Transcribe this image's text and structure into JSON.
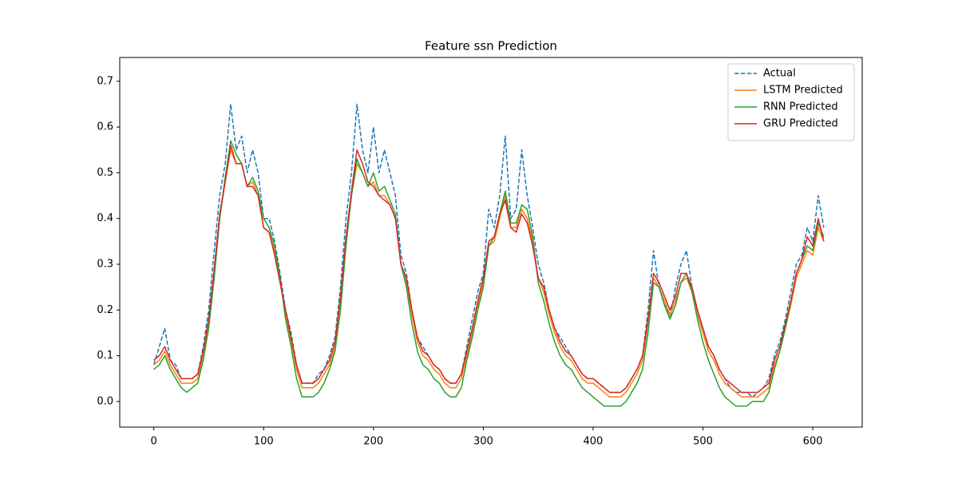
{
  "chart_data": {
    "type": "line",
    "title": "Feature ssn Prediction",
    "x": [
      0,
      5,
      10,
      15,
      20,
      25,
      30,
      35,
      40,
      45,
      50,
      55,
      60,
      65,
      70,
      75,
      80,
      85,
      90,
      95,
      100,
      105,
      110,
      115,
      120,
      125,
      130,
      135,
      140,
      145,
      150,
      155,
      160,
      165,
      170,
      175,
      180,
      185,
      190,
      195,
      200,
      205,
      210,
      215,
      220,
      225,
      230,
      235,
      240,
      245,
      250,
      255,
      260,
      265,
      270,
      275,
      280,
      285,
      290,
      295,
      300,
      305,
      310,
      315,
      320,
      325,
      330,
      335,
      340,
      345,
      350,
      355,
      360,
      365,
      370,
      375,
      380,
      385,
      390,
      395,
      400,
      405,
      410,
      415,
      420,
      425,
      430,
      435,
      440,
      445,
      450,
      455,
      460,
      465,
      470,
      475,
      480,
      485,
      490,
      495,
      500,
      505,
      510,
      515,
      520,
      525,
      530,
      535,
      540,
      545,
      550,
      555,
      560,
      565,
      570,
      575,
      580,
      585,
      590,
      595,
      600,
      605,
      610
    ],
    "series": [
      {
        "name": "Actual",
        "color": "#1f77b4",
        "linestyle": "dashed",
        "values": [
          0.08,
          0.12,
          0.16,
          0.09,
          0.08,
          0.05,
          0.05,
          0.05,
          0.06,
          0.12,
          0.2,
          0.33,
          0.45,
          0.52,
          0.65,
          0.55,
          0.58,
          0.5,
          0.55,
          0.5,
          0.4,
          0.4,
          0.35,
          0.28,
          0.2,
          0.15,
          0.08,
          0.04,
          0.04,
          0.04,
          0.06,
          0.07,
          0.1,
          0.14,
          0.25,
          0.4,
          0.5,
          0.65,
          0.55,
          0.5,
          0.6,
          0.5,
          0.55,
          0.5,
          0.45,
          0.32,
          0.28,
          0.2,
          0.14,
          0.12,
          0.1,
          0.08,
          0.07,
          0.05,
          0.04,
          0.04,
          0.06,
          0.12,
          0.18,
          0.24,
          0.28,
          0.42,
          0.38,
          0.45,
          0.58,
          0.4,
          0.42,
          0.55,
          0.45,
          0.38,
          0.3,
          0.26,
          0.2,
          0.16,
          0.14,
          0.12,
          0.1,
          0.08,
          0.06,
          0.05,
          0.05,
          0.04,
          0.03,
          0.02,
          0.02,
          0.02,
          0.03,
          0.05,
          0.07,
          0.1,
          0.2,
          0.33,
          0.25,
          0.22,
          0.18,
          0.25,
          0.3,
          0.33,
          0.25,
          0.2,
          0.16,
          0.12,
          0.1,
          0.07,
          0.05,
          0.03,
          0.02,
          0.02,
          0.02,
          0.01,
          0.02,
          0.03,
          0.05,
          0.1,
          0.13,
          0.18,
          0.24,
          0.3,
          0.32,
          0.38,
          0.35,
          0.45,
          0.38
        ]
      },
      {
        "name": "LSTM Predicted",
        "color": "#ff7f0e",
        "linestyle": "solid",
        "values": [
          0.08,
          0.09,
          0.11,
          0.08,
          0.06,
          0.04,
          0.04,
          0.04,
          0.05,
          0.1,
          0.17,
          0.28,
          0.4,
          0.48,
          0.55,
          0.52,
          0.52,
          0.47,
          0.48,
          0.45,
          0.38,
          0.37,
          0.33,
          0.26,
          0.19,
          0.13,
          0.07,
          0.03,
          0.03,
          0.03,
          0.04,
          0.06,
          0.08,
          0.12,
          0.22,
          0.35,
          0.45,
          0.52,
          0.5,
          0.47,
          0.48,
          0.45,
          0.45,
          0.43,
          0.4,
          0.3,
          0.26,
          0.19,
          0.13,
          0.1,
          0.09,
          0.07,
          0.06,
          0.04,
          0.03,
          0.03,
          0.05,
          0.1,
          0.15,
          0.21,
          0.26,
          0.34,
          0.35,
          0.4,
          0.45,
          0.38,
          0.38,
          0.42,
          0.4,
          0.35,
          0.27,
          0.24,
          0.19,
          0.15,
          0.12,
          0.1,
          0.09,
          0.07,
          0.05,
          0.04,
          0.04,
          0.03,
          0.02,
          0.01,
          0.01,
          0.01,
          0.02,
          0.04,
          0.06,
          0.09,
          0.17,
          0.27,
          0.25,
          0.22,
          0.19,
          0.22,
          0.26,
          0.27,
          0.24,
          0.19,
          0.15,
          0.11,
          0.09,
          0.06,
          0.04,
          0.03,
          0.02,
          0.01,
          0.01,
          0.01,
          0.01,
          0.02,
          0.03,
          0.08,
          0.11,
          0.16,
          0.21,
          0.27,
          0.3,
          0.33,
          0.32,
          0.38,
          0.35
        ]
      },
      {
        "name": "RNN Predicted",
        "color": "#2ca02c",
        "linestyle": "solid",
        "values": [
          0.07,
          0.08,
          0.1,
          0.07,
          0.05,
          0.03,
          0.02,
          0.03,
          0.04,
          0.09,
          0.16,
          0.27,
          0.4,
          0.49,
          0.57,
          0.54,
          0.52,
          0.47,
          0.49,
          0.46,
          0.4,
          0.38,
          0.34,
          0.27,
          0.18,
          0.12,
          0.05,
          0.01,
          0.01,
          0.01,
          0.02,
          0.04,
          0.07,
          0.11,
          0.2,
          0.34,
          0.45,
          0.53,
          0.5,
          0.47,
          0.5,
          0.46,
          0.47,
          0.44,
          0.41,
          0.3,
          0.25,
          0.17,
          0.11,
          0.08,
          0.07,
          0.05,
          0.04,
          0.02,
          0.01,
          0.01,
          0.03,
          0.09,
          0.14,
          0.2,
          0.25,
          0.34,
          0.36,
          0.41,
          0.46,
          0.39,
          0.39,
          0.43,
          0.42,
          0.36,
          0.26,
          0.22,
          0.17,
          0.13,
          0.1,
          0.08,
          0.07,
          0.05,
          0.03,
          0.02,
          0.01,
          0,
          -0.01,
          -0.01,
          -0.01,
          -0.01,
          0,
          0.02,
          0.04,
          0.07,
          0.15,
          0.26,
          0.25,
          0.21,
          0.18,
          0.21,
          0.26,
          0.28,
          0.24,
          0.18,
          0.13,
          0.09,
          0.06,
          0.03,
          0.01,
          0,
          -0.01,
          -0.01,
          -0.01,
          0,
          0,
          0,
          0.02,
          0.07,
          0.11,
          0.16,
          0.22,
          0.28,
          0.31,
          0.34,
          0.33,
          0.39,
          0.36
        ]
      },
      {
        "name": "GRU Predicted",
        "color": "#d62728",
        "linestyle": "solid",
        "values": [
          0.09,
          0.1,
          0.12,
          0.09,
          0.07,
          0.05,
          0.05,
          0.05,
          0.06,
          0.11,
          0.18,
          0.29,
          0.41,
          0.48,
          0.56,
          0.52,
          0.52,
          0.47,
          0.47,
          0.45,
          0.38,
          0.37,
          0.32,
          0.26,
          0.2,
          0.14,
          0.08,
          0.04,
          0.04,
          0.04,
          0.05,
          0.07,
          0.09,
          0.13,
          0.23,
          0.36,
          0.46,
          0.55,
          0.52,
          0.48,
          0.47,
          0.45,
          0.44,
          0.43,
          0.4,
          0.3,
          0.27,
          0.2,
          0.14,
          0.11,
          0.1,
          0.08,
          0.07,
          0.05,
          0.04,
          0.04,
          0.06,
          0.11,
          0.16,
          0.22,
          0.27,
          0.35,
          0.36,
          0.41,
          0.44,
          0.38,
          0.37,
          0.41,
          0.39,
          0.34,
          0.27,
          0.25,
          0.2,
          0.16,
          0.13,
          0.11,
          0.1,
          0.08,
          0.06,
          0.05,
          0.05,
          0.04,
          0.03,
          0.02,
          0.02,
          0.02,
          0.03,
          0.05,
          0.07,
          0.1,
          0.18,
          0.28,
          0.26,
          0.23,
          0.2,
          0.23,
          0.28,
          0.28,
          0.25,
          0.2,
          0.16,
          0.12,
          0.1,
          0.07,
          0.05,
          0.04,
          0.03,
          0.02,
          0.02,
          0.02,
          0.02,
          0.03,
          0.04,
          0.09,
          0.12,
          0.17,
          0.22,
          0.28,
          0.31,
          0.36,
          0.34,
          0.4,
          0.35
        ]
      }
    ],
    "xlim": [
      -31,
      645
    ],
    "xticks": [
      0,
      100,
      200,
      300,
      400,
      500,
      600
    ],
    "ylim": [
      -0.056,
      0.752
    ],
    "yticks": [
      {
        "value": 0,
        "label": "0.0"
      },
      0.1,
      0.2,
      0.3,
      0.4,
      0.5,
      0.6,
      0.7
    ],
    "legend": "upper right"
  }
}
